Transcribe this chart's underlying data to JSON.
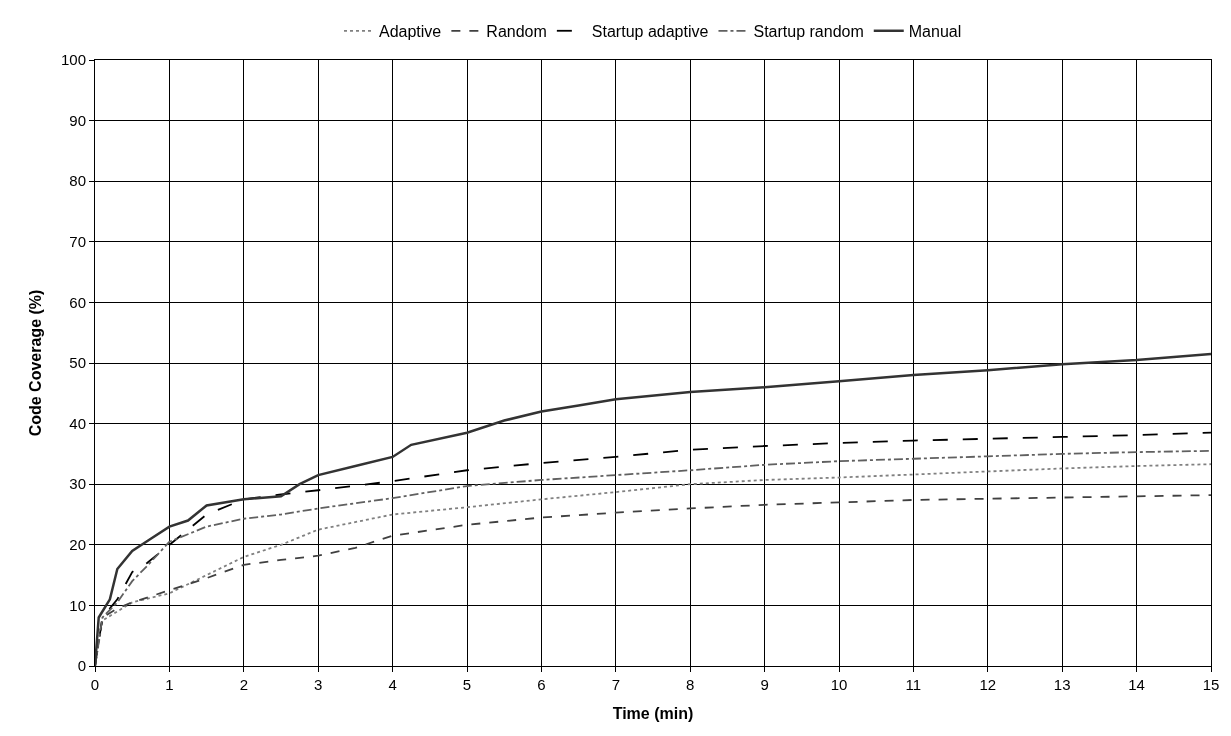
{
  "chart_data": {
    "type": "line",
    "xlabel": "Time (min)",
    "ylabel": "Code Coverage (%)",
    "xlim": [
      0,
      15
    ],
    "xticks": [
      0,
      1,
      2,
      3,
      4,
      5,
      6,
      7,
      8,
      9,
      10,
      11,
      12,
      13,
      14,
      15
    ],
    "ylim": [
      0,
      100
    ],
    "yticks": [
      0,
      10,
      20,
      30,
      40,
      50,
      60,
      70,
      80,
      90,
      100
    ],
    "grid": true,
    "legend": "top",
    "marker": "none",
    "series": [
      {
        "name": "Adaptive",
        "color": "#808080",
        "line_style": "dotted",
        "x": [
          0,
          0.1,
          0.3,
          0.5,
          1,
          1.5,
          2,
          2.5,
          3,
          4,
          5,
          6,
          7,
          8,
          9,
          10,
          11,
          12,
          13,
          14,
          15
        ],
        "values": [
          0,
          7.5,
          9,
          10.5,
          12,
          15,
          18,
          20,
          22.5,
          25,
          26.2,
          27.5,
          28.7,
          30,
          30.7,
          31.1,
          31.6,
          32.1,
          32.6,
          33,
          33.3
        ]
      },
      {
        "name": "Random",
        "color": "#404040",
        "line_style": "dashed",
        "x": [
          0,
          0.1,
          0.3,
          0.5,
          1,
          1.5,
          2,
          2.5,
          3,
          3.5,
          4,
          5,
          6,
          7,
          8,
          9,
          10,
          11,
          12,
          13,
          14,
          15
        ],
        "values": [
          0,
          8,
          9.5,
          10.5,
          12.5,
          14.5,
          16.7,
          17.5,
          18.2,
          19.5,
          21.5,
          23.3,
          24.5,
          25.3,
          26,
          26.6,
          27,
          27.4,
          27.6,
          27.8,
          28,
          28.2
        ]
      },
      {
        "name": "Startup adaptive",
        "color": "#000000",
        "line_style": "longdash",
        "x": [
          0,
          0.1,
          0.3,
          0.5,
          0.7,
          1,
          1.5,
          2,
          2.5,
          3,
          4,
          5,
          6,
          7,
          8,
          9,
          10,
          11,
          12,
          13,
          14,
          15
        ],
        "values": [
          0,
          8,
          11,
          15.5,
          17,
          20,
          25,
          27.5,
          28.3,
          29,
          30.5,
          32.3,
          33.5,
          34.5,
          35.7,
          36.3,
          36.8,
          37.2,
          37.5,
          37.8,
          38.1,
          38.5
        ]
      },
      {
        "name": "Startup random",
        "color": "#606060",
        "line_style": "dashdot",
        "x": [
          0,
          0.1,
          0.3,
          0.5,
          0.7,
          1,
          1.5,
          2,
          2.5,
          3,
          4,
          5,
          6,
          7,
          8,
          9,
          10,
          11,
          12,
          13,
          14,
          15
        ],
        "values": [
          0,
          8,
          10.5,
          14,
          16.5,
          20.5,
          23,
          24.3,
          25,
          26,
          27.7,
          29.7,
          30.7,
          31.5,
          32.3,
          33.2,
          33.8,
          34.2,
          34.6,
          35,
          35.3,
          35.5
        ]
      },
      {
        "name": "Manual",
        "color": "#333333",
        "line_style": "solid",
        "x": [
          0,
          0.05,
          0.2,
          0.3,
          0.5,
          0.75,
          1,
          1.25,
          1.5,
          2,
          2.5,
          2.75,
          3,
          3.5,
          4,
          4.25,
          5,
          5.5,
          6,
          6.5,
          7,
          8,
          9,
          10,
          11,
          12,
          13,
          14,
          15
        ],
        "values": [
          0,
          8,
          11,
          16,
          19,
          21,
          23,
          24,
          26.5,
          27.5,
          28,
          30,
          31.5,
          33,
          34.5,
          36.5,
          38.5,
          40.5,
          42,
          43,
          44,
          45.2,
          46,
          47,
          48,
          48.8,
          49.8,
          50.5,
          51.5
        ]
      }
    ]
  }
}
